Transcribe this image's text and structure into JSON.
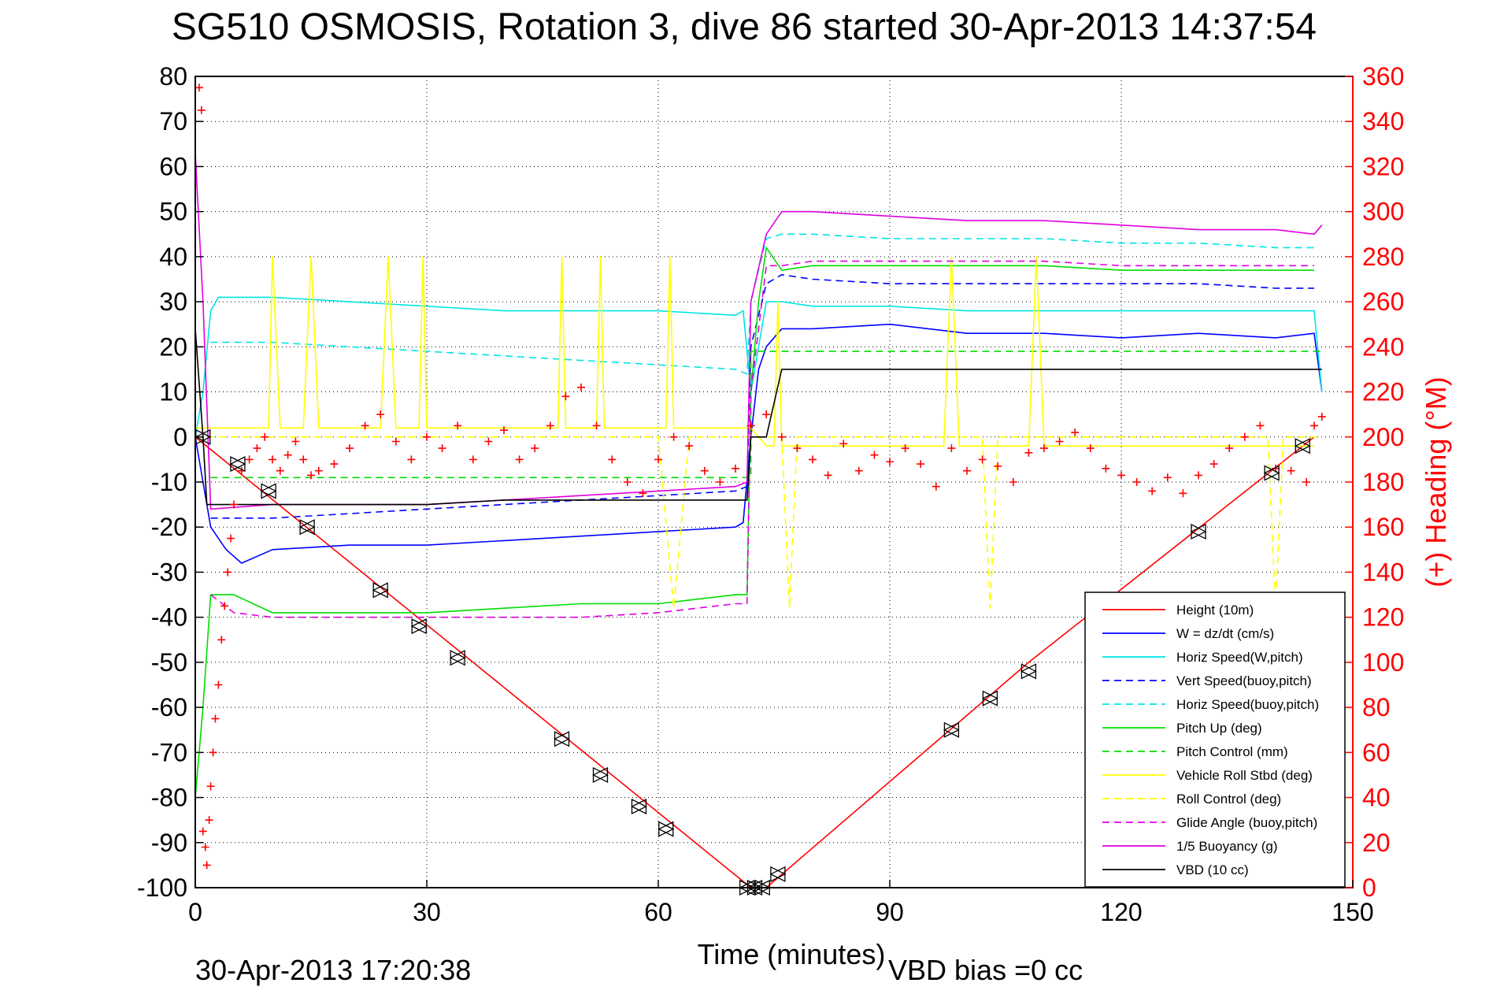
{
  "chart_data": {
    "type": "line",
    "title": "SG510 OSMOSIS, Rotation 3, dive 86 started 30-Apr-2013 14:37:54",
    "xlabel": "Time (minutes)",
    "ylabel": "",
    "ylabel_right": "(+) Heading (°M)",
    "xlim": [
      0,
      150
    ],
    "ylim": [
      -100,
      80
    ],
    "ylim_right": [
      0,
      360
    ],
    "x_ticks": [
      "0",
      "30",
      "60",
      "90",
      "120",
      "150"
    ],
    "y_ticks": [
      "80",
      "70",
      "60",
      "50",
      "40",
      "30",
      "20",
      "10",
      "0",
      "-10",
      "-20",
      "-30",
      "-40",
      "-50",
      "-60",
      "-70",
      "-80",
      "-90",
      "-100"
    ],
    "y_ticks_right": [
      "360",
      "340",
      "320",
      "300",
      "280",
      "260",
      "240",
      "220",
      "200",
      "180",
      "160",
      "140",
      "120",
      "100",
      "80",
      "60",
      "40",
      "20",
      "0"
    ],
    "grid": true,
    "legend_position": "bottom-right",
    "footer_left": "30-Apr-2013 17:20:38",
    "footer_right": "VBD bias =0 cc",
    "series": [
      {
        "name": "Height (10m)",
        "color": "#ff0000",
        "style": "solid",
        "x": [
          0,
          36,
          72,
          74,
          108,
          145
        ],
        "y": [
          0,
          -50,
          -100,
          -100,
          -50,
          0
        ]
      },
      {
        "name": "W = dz/dt (cm/s)",
        "color": "#0000ff",
        "style": "solid",
        "x": [
          0,
          1,
          2,
          4,
          6,
          10,
          20,
          30,
          40,
          50,
          60,
          70,
          71,
          72,
          73,
          74,
          76,
          80,
          90,
          100,
          110,
          120,
          130,
          140,
          145,
          146
        ],
        "y": [
          0,
          -10,
          -20,
          -25,
          -28,
          -25,
          -24,
          -24,
          -23,
          -22,
          -21,
          -20,
          -19,
          0,
          15,
          20,
          24,
          24,
          25,
          23,
          23,
          22,
          23,
          22,
          23,
          10
        ]
      },
      {
        "name": "Horiz Speed(W,pitch)",
        "color": "#00e5e5",
        "style": "solid",
        "x": [
          0,
          1,
          2,
          3,
          10,
          20,
          30,
          40,
          50,
          60,
          70,
          71,
          72,
          73,
          74,
          76,
          80,
          90,
          100,
          110,
          120,
          130,
          140,
          145,
          146
        ],
        "y": [
          0,
          10,
          28,
          31,
          31,
          30,
          29,
          28,
          28,
          28,
          27,
          28,
          10,
          20,
          30,
          30,
          29,
          29,
          28,
          28,
          28,
          28,
          28,
          28,
          10
        ]
      },
      {
        "name": "Vert Speed(buoy,pitch)",
        "color": "#0000ff",
        "style": "dashed",
        "x": [
          2,
          10,
          20,
          30,
          40,
          50,
          60,
          70,
          71.5,
          72,
          74,
          76,
          80,
          90,
          100,
          110,
          120,
          130,
          140,
          145
        ],
        "y": [
          -18,
          -18,
          -17,
          -16,
          -15,
          -14,
          -13,
          -12,
          -11,
          20,
          34,
          36,
          35,
          34,
          34,
          34,
          34,
          34,
          33,
          33
        ]
      },
      {
        "name": "Horiz Speed(buoy,pitch)",
        "color": "#00e5e5",
        "style": "dashed",
        "x": [
          2,
          10,
          20,
          30,
          40,
          50,
          60,
          70,
          71.5,
          72,
          74,
          76,
          80,
          90,
          100,
          110,
          120,
          130,
          140,
          145
        ],
        "y": [
          21,
          21,
          20,
          19,
          18,
          17,
          16,
          15,
          14,
          30,
          44,
          45,
          45,
          44,
          44,
          44,
          43,
          43,
          42,
          42
        ]
      },
      {
        "name": "Pitch Up (deg)",
        "color": "#00dd00",
        "style": "solid",
        "x": [
          0,
          1,
          2,
          5,
          10,
          20,
          30,
          40,
          50,
          60,
          70,
          71.5,
          72,
          73,
          74,
          76,
          80,
          90,
          100,
          110,
          120,
          130,
          140,
          145
        ],
        "y": [
          -80,
          -60,
          -35,
          -35,
          -39,
          -39,
          -39,
          -38,
          -37,
          -37,
          -35,
          -35,
          10,
          30,
          42,
          37,
          38,
          38,
          38,
          38,
          37,
          37,
          37,
          37
        ]
      },
      {
        "name": "Pitch Control (mm)",
        "color": "#00dd00",
        "style": "dashed",
        "x": [
          2,
          72,
          72.01,
          146
        ],
        "y": [
          -9,
          -9,
          19,
          19
        ]
      },
      {
        "name": "Vehicle Roll Stbd (deg)",
        "color": "#ffff00",
        "style": "solid",
        "x": [
          0,
          2,
          5,
          8,
          9.5,
          10,
          11,
          14,
          15,
          16,
          20,
          24,
          25,
          26,
          29,
          29.5,
          30,
          40,
          47,
          47.5,
          48,
          52,
          52.5,
          53,
          60,
          61,
          61.5,
          62,
          70,
          72,
          74,
          75,
          75.5,
          76,
          90,
          97,
          98,
          99,
          108,
          109,
          110,
          140,
          145
        ],
        "y": [
          2,
          2,
          2,
          2,
          2,
          40,
          2,
          2,
          40,
          2,
          2,
          2,
          40,
          2,
          2,
          40,
          2,
          2,
          2,
          40,
          2,
          2,
          40,
          2,
          2,
          2,
          40,
          2,
          2,
          2,
          -2,
          -2,
          30,
          -2,
          -2,
          -2,
          40,
          -2,
          -2,
          40,
          -2,
          -2,
          -2
        ]
      },
      {
        "name": "Roll Control (deg)",
        "color": "#ffff00",
        "style": "dashed",
        "x": [
          0,
          60,
          62,
          64,
          66,
          72,
          74,
          76,
          77,
          78,
          102,
          103,
          104,
          139,
          140,
          141,
          146
        ],
        "y": [
          0,
          0,
          -38,
          0,
          0,
          0,
          0,
          0,
          -38,
          0,
          0,
          -38,
          0,
          0,
          -38,
          0,
          0
        ]
      },
      {
        "name": "Glide Angle (buoy,pitch)",
        "color": "#e000e0",
        "style": "dashed",
        "x": [
          2,
          5,
          10,
          20,
          30,
          40,
          50,
          60,
          70,
          71.5,
          72,
          74,
          76,
          80,
          90,
          100,
          110,
          120,
          130,
          140,
          145
        ],
        "y": [
          -35,
          -39,
          -40,
          -40,
          -40,
          -40,
          -40,
          -39,
          -37,
          -37,
          10,
          38,
          38,
          39,
          39,
          39,
          39,
          38,
          38,
          38,
          38
        ]
      },
      {
        "name": "1/5 Buoyancy (g)",
        "color": "#e000e0",
        "style": "solid",
        "x": [
          0,
          1,
          2,
          10,
          20,
          30,
          40,
          50,
          60,
          70,
          71.5,
          72,
          74,
          76,
          80,
          90,
          100,
          110,
          120,
          130,
          140,
          145,
          146
        ],
        "y": [
          63,
          30,
          -16,
          -15,
          -15,
          -15,
          -14,
          -13,
          -12,
          -11,
          -10,
          30,
          45,
          50,
          50,
          49,
          48,
          48,
          47,
          46,
          46,
          45,
          47
        ]
      },
      {
        "name": "VBD (10 cc)",
        "color": "#000000",
        "style": "solid",
        "x": [
          0,
          1,
          1.5,
          2,
          10,
          20,
          30,
          40,
          50,
          60,
          70,
          71.5,
          72,
          74,
          76,
          80,
          90,
          100,
          110,
          120,
          130,
          140,
          145,
          146
        ],
        "y": [
          24,
          0,
          -15,
          -15,
          -15,
          -15,
          -15,
          -14,
          -14,
          -14,
          -14,
          -14,
          0,
          0,
          15,
          15,
          15,
          15,
          15,
          15,
          15,
          15,
          15,
          15
        ]
      }
    ],
    "heading": {
      "color": "#ff0000",
      "marker": "+",
      "axis": "right",
      "x": [
        0.5,
        0.8,
        1,
        1.3,
        1.5,
        1.8,
        2,
        2.3,
        2.6,
        3,
        3.4,
        3.8,
        4.2,
        4.6,
        5,
        6,
        7,
        8,
        9,
        10,
        11,
        12,
        13,
        14,
        15,
        16,
        18,
        20,
        22,
        24,
        26,
        28,
        30,
        32,
        34,
        36,
        38,
        40,
        42,
        44,
        46,
        48,
        50,
        52,
        54,
        56,
        58,
        60,
        62,
        64,
        66,
        68,
        70,
        72,
        74,
        76,
        78,
        80,
        82,
        84,
        86,
        88,
        90,
        92,
        94,
        96,
        98,
        100,
        102,
        104,
        106,
        108,
        110,
        112,
        114,
        116,
        118,
        120,
        122,
        124,
        126,
        128,
        130,
        132,
        134,
        136,
        138,
        140,
        142,
        144,
        145,
        146
      ],
      "y": [
        355,
        345,
        25,
        18,
        10,
        30,
        45,
        60,
        75,
        90,
        110,
        125,
        140,
        155,
        170,
        185,
        190,
        195,
        200,
        190,
        185,
        192,
        198,
        190,
        183,
        185,
        188,
        195,
        205,
        210,
        198,
        190,
        200,
        195,
        205,
        190,
        198,
        203,
        190,
        195,
        205,
        218,
        222,
        205,
        190,
        180,
        175,
        190,
        200,
        196,
        185,
        180,
        186,
        205,
        210,
        200,
        195,
        190,
        183,
        197,
        185,
        192,
        189,
        195,
        188,
        178,
        195,
        185,
        190,
        187,
        180,
        193,
        195,
        198,
        202,
        195,
        186,
        183,
        180,
        176,
        182,
        175,
        183,
        188,
        195,
        200,
        205,
        186,
        185,
        180,
        205,
        209
      ]
    },
    "markers": {
      "color": "#000000",
      "x": [
        1,
        5.5,
        9.5,
        14.5,
        24,
        29,
        34,
        47.5,
        52.5,
        57.5,
        61,
        71.5,
        72.5,
        73.5,
        75.5,
        98,
        103,
        108,
        130,
        139.5,
        143.5
      ],
      "y": [
        0,
        -6,
        -12,
        -20,
        -34,
        -42,
        -49,
        -67,
        -75,
        -82,
        -87,
        -100,
        -100,
        -100,
        -97,
        -65,
        -58,
        -52,
        -21,
        -8,
        -2
      ]
    }
  }
}
